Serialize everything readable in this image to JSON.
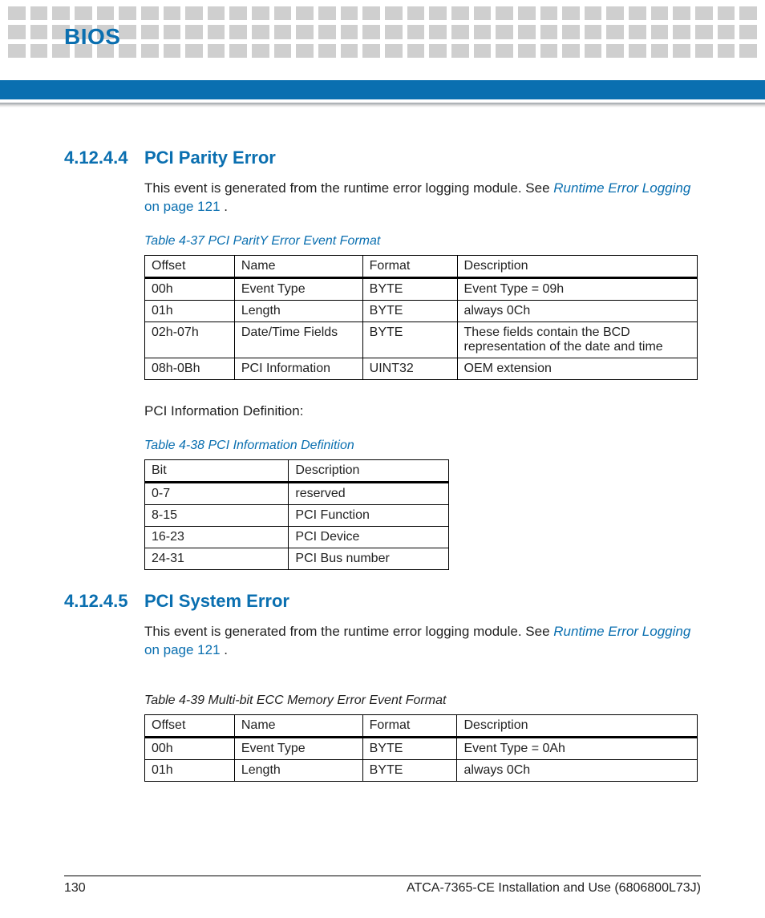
{
  "colors": {
    "accent": "#0a6fb0",
    "bar": "#0a6fb0",
    "link": "#0a6fb0",
    "dot": "#cfcfcf",
    "text": "#222222",
    "background": "#ffffff",
    "border": "#000000"
  },
  "header": {
    "chapter": "BIOS"
  },
  "section1": {
    "number": "4.12.4.4",
    "title": "PCI Parity Error",
    "para_pre": "This event is generated from the runtime error logging module. See ",
    "para_link": "Runtime Error Logging",
    "para_post_link": " on page 121",
    "para_end": " .",
    "table_caption": "Table 4-37 PCI ParitY Error Event Format",
    "table": {
      "columns": [
        "Offset",
        "Name",
        "Format",
        "Description"
      ],
      "rows": [
        [
          "00h",
          "Event Type",
          "BYTE",
          "Event Type = 09h"
        ],
        [
          "01h",
          "Length",
          "BYTE",
          "always 0Ch"
        ],
        [
          "02h-07h",
          "Date/Time Fields",
          "BYTE",
          "These fields contain the BCD representation of the date and time"
        ],
        [
          "08h-0Bh",
          "PCI Information",
          "UINT32",
          "OEM extension"
        ]
      ]
    },
    "after_table_text": "PCI Information Definition:",
    "table2_caption": "Table 4-38 PCI Information Definition",
    "table2": {
      "columns": [
        "Bit",
        "Description"
      ],
      "rows": [
        [
          "0-7",
          "reserved"
        ],
        [
          "8-15",
          "PCI Function"
        ],
        [
          "16-23",
          "PCI Device"
        ],
        [
          "24-31",
          "PCI Bus number"
        ]
      ]
    }
  },
  "section2": {
    "number": "4.12.4.5",
    "title": "PCI System Error",
    "para_pre": "This event is generated from the runtime error logging module. See ",
    "para_link": "Runtime Error Logging",
    "para_post_link": " on page 121",
    "para_end": " .",
    "table_caption": "Table 4-39 Multi-bit ECC Memory Error Event Format",
    "table": {
      "columns": [
        "Offset",
        "Name",
        "Format",
        "Description"
      ],
      "rows": [
        [
          "00h",
          "Event Type",
          "BYTE",
          "Event Type = 0Ah"
        ],
        [
          "01h",
          "Length",
          "BYTE",
          "always 0Ch"
        ]
      ]
    }
  },
  "footer": {
    "page_number": "130",
    "doc_title": "ATCA-7365-CE Installation and Use (6806800L73J)"
  }
}
